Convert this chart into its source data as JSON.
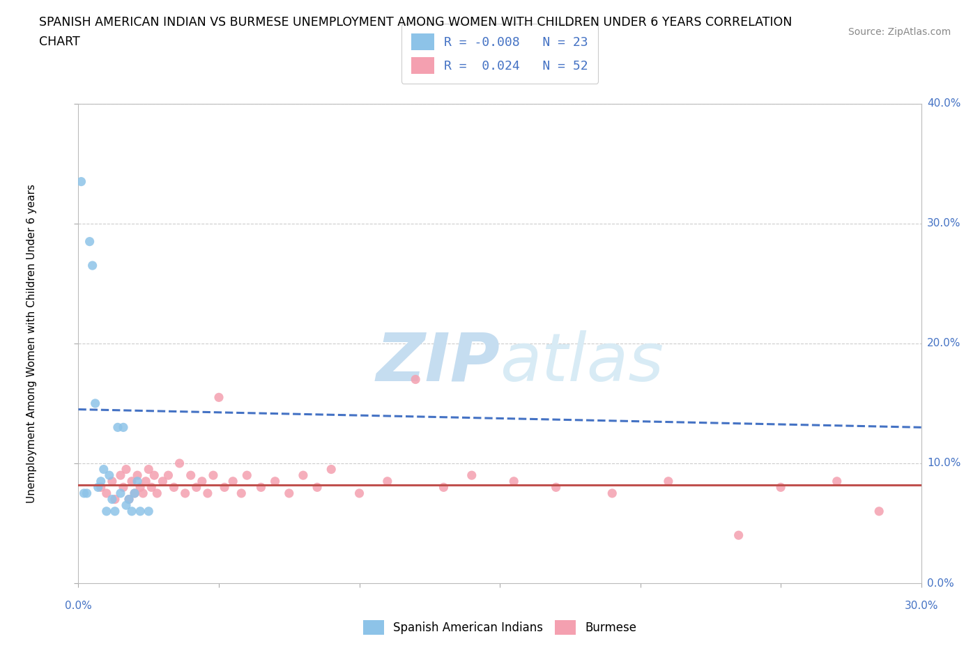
{
  "title_line1": "SPANISH AMERICAN INDIAN VS BURMESE UNEMPLOYMENT AMONG WOMEN WITH CHILDREN UNDER 6 YEARS CORRELATION",
  "title_line2": "CHART",
  "source": "Source: ZipAtlas.com",
  "ylabel_label": "Unemployment Among Women with Children Under 6 years",
  "legend_label1": "Spanish American Indians",
  "legend_label2": "Burmese",
  "color_blue": "#8DC3E8",
  "color_pink": "#F4A0B0",
  "color_blue_line": "#4472C4",
  "color_pink_line": "#C0504D",
  "color_text_blue": "#4472C4",
  "color_grid": "#CCCCCC",
  "watermark_zip": "ZIP",
  "watermark_atlas": "atlas",
  "xlim": [
    0.0,
    0.3
  ],
  "ylim": [
    0.0,
    0.4
  ],
  "xticks": [
    0.0,
    0.05,
    0.1,
    0.15,
    0.2,
    0.25,
    0.3
  ],
  "yticks": [
    0.0,
    0.1,
    0.2,
    0.3,
    0.4
  ],
  "blue_scatter_x": [
    0.001,
    0.002,
    0.003,
    0.004,
    0.005,
    0.006,
    0.007,
    0.008,
    0.009,
    0.01,
    0.011,
    0.012,
    0.013,
    0.014,
    0.015,
    0.016,
    0.017,
    0.018,
    0.019,
    0.02,
    0.021,
    0.022,
    0.025
  ],
  "blue_scatter_y": [
    0.335,
    0.075,
    0.075,
    0.285,
    0.265,
    0.15,
    0.08,
    0.085,
    0.095,
    0.06,
    0.09,
    0.07,
    0.06,
    0.13,
    0.075,
    0.13,
    0.065,
    0.07,
    0.06,
    0.075,
    0.085,
    0.06,
    0.06
  ],
  "pink_scatter_x": [
    0.008,
    0.01,
    0.012,
    0.013,
    0.015,
    0.016,
    0.017,
    0.018,
    0.019,
    0.02,
    0.021,
    0.022,
    0.023,
    0.024,
    0.025,
    0.026,
    0.027,
    0.028,
    0.03,
    0.032,
    0.034,
    0.036,
    0.038,
    0.04,
    0.042,
    0.044,
    0.046,
    0.048,
    0.05,
    0.052,
    0.055,
    0.058,
    0.06,
    0.065,
    0.07,
    0.075,
    0.08,
    0.085,
    0.09,
    0.1,
    0.11,
    0.12,
    0.13,
    0.14,
    0.155,
    0.17,
    0.19,
    0.21,
    0.235,
    0.25,
    0.27,
    0.285
  ],
  "pink_scatter_y": [
    0.08,
    0.075,
    0.085,
    0.07,
    0.09,
    0.08,
    0.095,
    0.07,
    0.085,
    0.075,
    0.09,
    0.08,
    0.075,
    0.085,
    0.095,
    0.08,
    0.09,
    0.075,
    0.085,
    0.09,
    0.08,
    0.1,
    0.075,
    0.09,
    0.08,
    0.085,
    0.075,
    0.09,
    0.155,
    0.08,
    0.085,
    0.075,
    0.09,
    0.08,
    0.085,
    0.075,
    0.09,
    0.08,
    0.095,
    0.075,
    0.085,
    0.17,
    0.08,
    0.09,
    0.085,
    0.08,
    0.075,
    0.085,
    0.04,
    0.08,
    0.085,
    0.06
  ],
  "blue_trend_x": [
    0.0,
    0.3
  ],
  "blue_trend_y": [
    0.145,
    0.13
  ],
  "pink_trend_x": [
    0.0,
    0.3
  ],
  "pink_trend_y": [
    0.082,
    0.082
  ]
}
